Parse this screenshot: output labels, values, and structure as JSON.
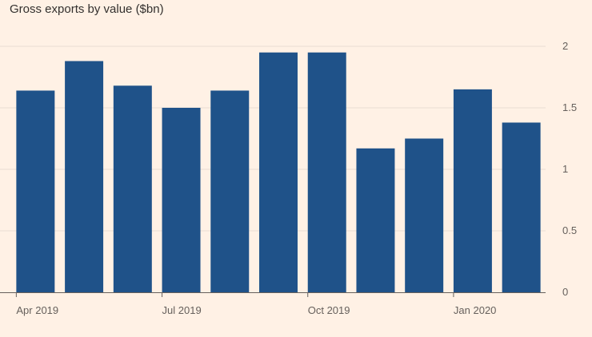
{
  "chart_data": {
    "type": "bar",
    "title": "Gross exports by value ($bn)",
    "xlabel": "",
    "ylabel": "",
    "categories": [
      "Apr 2019",
      "May 2019",
      "Jun 2019",
      "Jul 2019",
      "Aug 2019",
      "Sep 2019",
      "Oct 2019",
      "Nov 2019",
      "Dec 2019",
      "Jan 2020",
      "Feb 2020"
    ],
    "values": [
      1.64,
      1.88,
      1.68,
      1.5,
      1.64,
      1.95,
      1.95,
      1.17,
      1.25,
      1.65,
      1.38
    ],
    "x_tick_labels": [
      {
        "category": "Apr 2019",
        "label": "Apr 2019"
      },
      {
        "category": "Jul 2019",
        "label": "Jul 2019"
      },
      {
        "category": "Oct 2019",
        "label": "Oct 2019"
      },
      {
        "category": "Jan 2020",
        "label": "Jan 2020"
      }
    ],
    "y_ticks": [
      0,
      0.5,
      1,
      1.5,
      2
    ],
    "y_tick_labels": [
      "0",
      "0.5",
      "1",
      "1.5",
      "2"
    ],
    "ylim": [
      0,
      2
    ],
    "grid": true,
    "y_axis_side": "right",
    "colors": {
      "bar": "#1f5289",
      "background": "#fff1e5",
      "grid": "#e9ddd2",
      "axis": "#66605c",
      "text": "#33302e"
    }
  }
}
